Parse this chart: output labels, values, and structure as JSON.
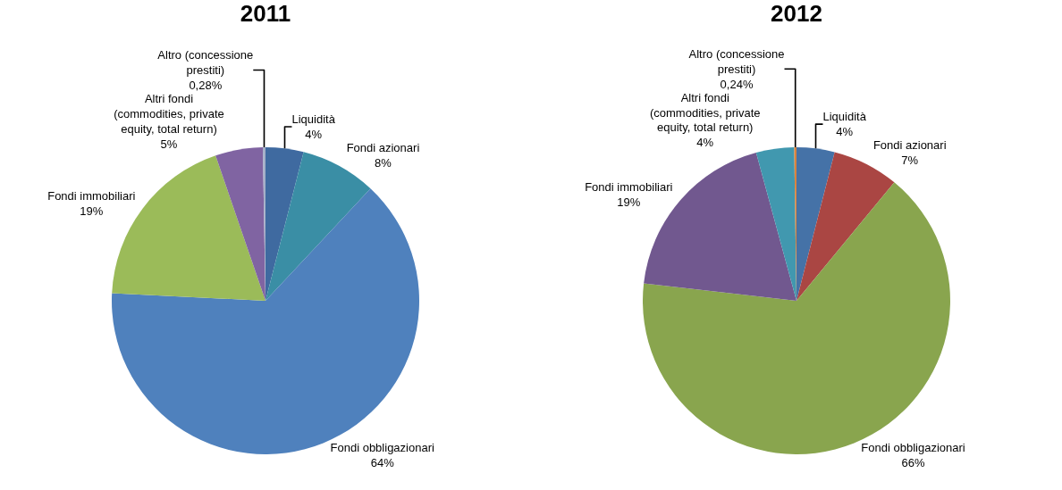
{
  "chart_data": [
    {
      "type": "pie",
      "title": "2011",
      "categories": [
        "Liquidità",
        "Fondi azionari",
        "Fondi obbligazionari",
        "Fondi immobiliari",
        "Altri fondi (commodities, private equity, total return)",
        "Altro (concessione prestiti)"
      ],
      "values": [
        4,
        8,
        64,
        19,
        5,
        0.28
      ],
      "value_labels": [
        "4%",
        "8%",
        "64%",
        "19%",
        "5%",
        "0,28%"
      ],
      "colors": [
        "#3f6aa0",
        "#3a8ea5",
        "#4f81bd",
        "#9bbb59",
        "#8064a2",
        "#a5b0c8"
      ],
      "legend": false
    },
    {
      "type": "pie",
      "title": "2012",
      "categories": [
        "Liquidità",
        "Fondi azionari",
        "Fondi obbligazionari",
        "Fondi immobiliari",
        "Altri fondi (commodities, private equity, total return)",
        "Altro (concessione prestiti)"
      ],
      "values": [
        4,
        7,
        66,
        19,
        4,
        0.24
      ],
      "value_labels": [
        "4%",
        "7%",
        "66%",
        "19%",
        "4%",
        "0,24%"
      ],
      "colors": [
        "#4572a7",
        "#aa4643",
        "#89a54e",
        "#71588f",
        "#4198af",
        "#db843d"
      ],
      "legend": false
    }
  ]
}
